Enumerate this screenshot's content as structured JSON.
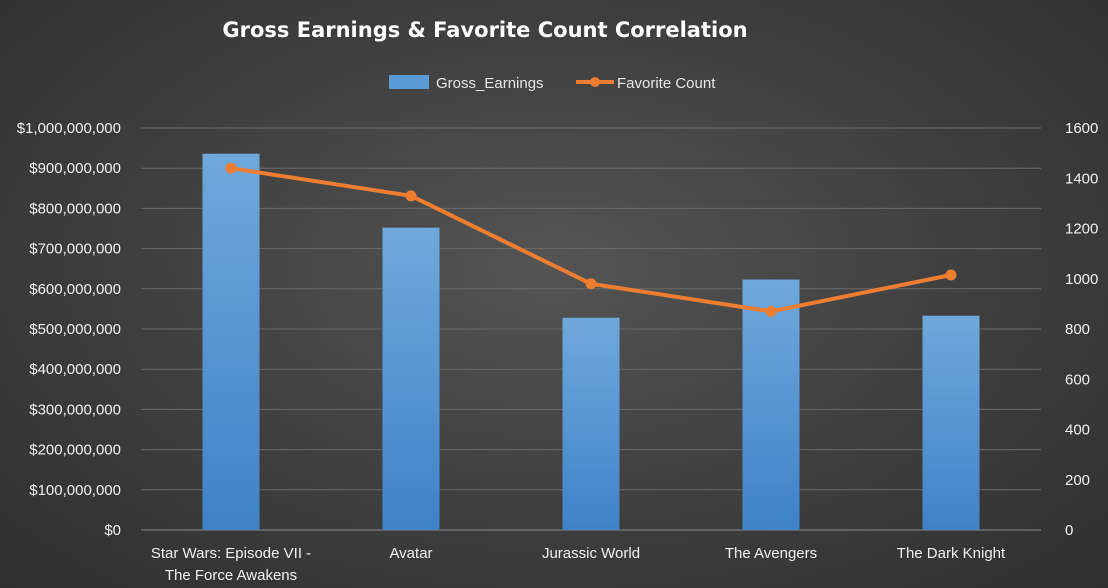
{
  "chart_data": {
    "type": "bar",
    "title": "Gross Earnings & Favorite Count Correlation",
    "categories": [
      [
        "Star Wars: Episode VII -",
        "The Force Awakens"
      ],
      [
        "Avatar"
      ],
      [
        "Jurassic World"
      ],
      [
        "The Avengers"
      ],
      [
        "The Dark Knight"
      ]
    ],
    "series": [
      {
        "name": "Gross_Earnings",
        "type": "bar",
        "axis": "left",
        "color": "#5b9bd5",
        "values": [
          936000000,
          752000000,
          528000000,
          623000000,
          533000000
        ]
      },
      {
        "name": "Favorite Count",
        "type": "line",
        "axis": "right",
        "color": "#ed7d31",
        "values": [
          1440,
          1330,
          980,
          870,
          1015
        ]
      }
    ],
    "y_left": {
      "ylim": [
        0,
        1000000000
      ],
      "ticks": [
        "$0",
        "$100,000,000",
        "$200,000,000",
        "$300,000,000",
        "$400,000,000",
        "$500,000,000",
        "$600,000,000",
        "$700,000,000",
        "$800,000,000",
        "$900,000,000",
        "$1,000,000,000"
      ]
    },
    "y_right": {
      "ylim": [
        0,
        1600
      ],
      "ticks": [
        "0",
        "200",
        "400",
        "600",
        "800",
        "1000",
        "1200",
        "1400",
        "1600"
      ]
    },
    "grid": true,
    "legend_position": "top-center"
  }
}
